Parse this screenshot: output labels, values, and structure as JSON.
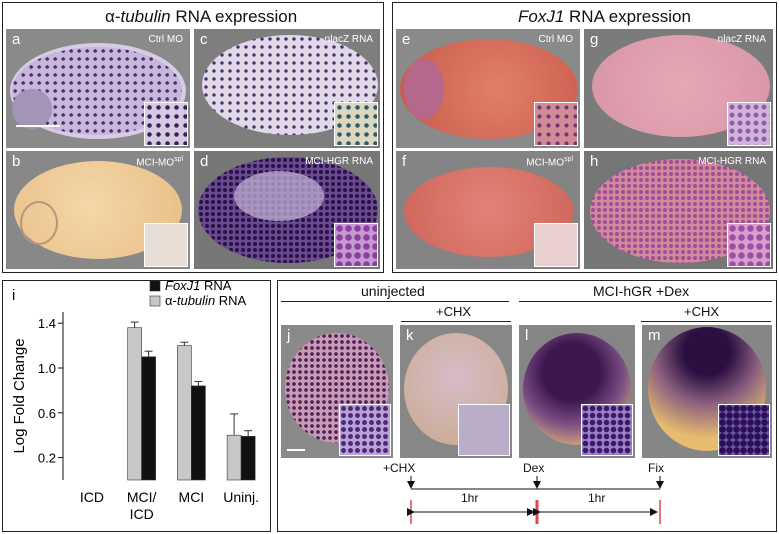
{
  "top_left": {
    "title_prefix": "α-",
    "title_gene": "tubulin",
    "title_suffix": " RNA expression",
    "panels": [
      {
        "letter": "a",
        "cond": "Ctrl MO"
      },
      {
        "letter": "c",
        "cond": "nlacZ RNA"
      },
      {
        "letter": "b",
        "cond": "MCI-MO",
        "sup": "spl"
      },
      {
        "letter": "d",
        "cond": "MCI-HGR RNA"
      }
    ]
  },
  "top_right": {
    "title_gene": "FoxJ1",
    "title_suffix": " RNA expression",
    "panels": [
      {
        "letter": "e",
        "cond": "Ctrl MO"
      },
      {
        "letter": "g",
        "cond": "nlacZ RNA"
      },
      {
        "letter": "f",
        "cond": "MCI-MO",
        "sup": "spl"
      },
      {
        "letter": "h",
        "cond": "MCI-HGR RNA"
      }
    ]
  },
  "bottom_right": {
    "group1": "uninjected",
    "group2": "MCI-hGR +Dex",
    "chx1": "+CHX",
    "chx2": "+CHX",
    "panels": [
      {
        "letter": "j"
      },
      {
        "letter": "k"
      },
      {
        "letter": "l"
      },
      {
        "letter": "m"
      }
    ],
    "timeline": {
      "t_chx": "+CHX",
      "t_dex": "Dex",
      "t_fix": "Fix",
      "dur1": "1hr",
      "dur2": "1hr"
    }
  },
  "chart_data": {
    "type": "bar",
    "panel_letter": "i",
    "ylabel": "Log Fold Change",
    "categories": [
      "ICD",
      "MCI/\nICD",
      "MCI",
      "Uninj."
    ],
    "category_lines": [
      [
        "ICD"
      ],
      [
        "MCI/",
        "ICD"
      ],
      [
        "MCI"
      ],
      [
        "Uninj."
      ]
    ],
    "yticks": [
      0.2,
      0.6,
      1.0,
      1.4
    ],
    "ylim": [
      0.0,
      1.5
    ],
    "series": [
      {
        "name": "α-tubulin RNA",
        "name_italic": "tubulin",
        "color": "#c8c8c8",
        "values": [
          null,
          1.36,
          1.2,
          0.4
        ],
        "errors": [
          null,
          0.05,
          0.03,
          0.19
        ]
      },
      {
        "name": "FoxJ1 RNA",
        "name_italic": "FoxJ1",
        "color": "#111111",
        "values": [
          null,
          1.1,
          0.84,
          0.39
        ],
        "errors": [
          null,
          0.05,
          0.04,
          0.05
        ]
      }
    ],
    "legend_position": "top-right"
  },
  "colors": {
    "tubulin_stain": "#3b1e5e",
    "foxj1_bg": "#d9695a",
    "foxj1_stain": "#8c4c8a"
  }
}
